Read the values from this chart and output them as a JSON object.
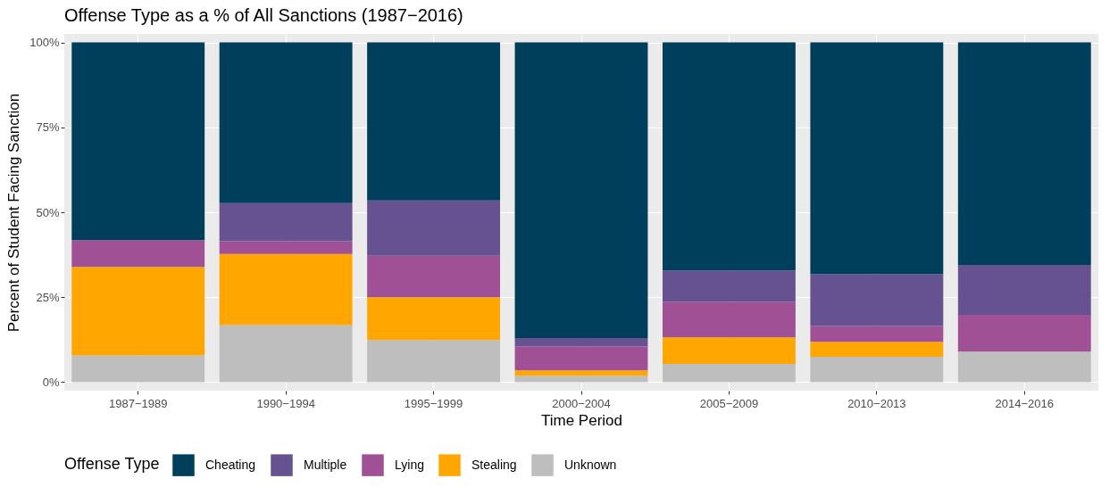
{
  "chart_data": {
    "type": "bar",
    "title": "Offense Type as a % of All Sanctions (1987−2016)",
    "xlabel": "Time Period",
    "ylabel": "Percent of Student Facing Sanction",
    "legend_title": "Offense Type",
    "stacked": true,
    "categories": [
      "1987−1989",
      "1990−1994",
      "1995−1999",
      "2000−2004",
      "2005−2009",
      "2010−2013",
      "2014−2016"
    ],
    "series": [
      {
        "name": "Unknown",
        "color": "#bebebe",
        "values": [
          7.9,
          16.8,
          12.4,
          1.9,
          5.4,
          7.5,
          9.0
        ]
      },
      {
        "name": "Stealing",
        "color": "#ffa600",
        "values": [
          26.0,
          20.9,
          12.6,
          1.6,
          7.8,
          4.4,
          0
        ]
      },
      {
        "name": "Lying",
        "color": "#a05195",
        "values": [
          7.9,
          3.8,
          12.2,
          7.0,
          10.4,
          4.6,
          10.8
        ]
      },
      {
        "name": "Multiple",
        "color": "#665191",
        "values": [
          0,
          11.2,
          16.3,
          2.5,
          9.3,
          15.3,
          14.7
        ]
      },
      {
        "name": "Cheating",
        "color": "#003f5c",
        "values": [
          58.2,
          47.3,
          46.5,
          87.0,
          67.1,
          68.2,
          65.5
        ]
      }
    ],
    "ylim": [
      -2.5,
      102.5
    ],
    "yticks": [
      {
        "value": 0,
        "label": "0%"
      },
      {
        "value": 25,
        "label": "25%"
      },
      {
        "value": 50,
        "label": "50%"
      },
      {
        "value": 75,
        "label": "75%"
      },
      {
        "value": 100,
        "label": "100%"
      }
    ],
    "grid": true,
    "legend": "bottom"
  }
}
